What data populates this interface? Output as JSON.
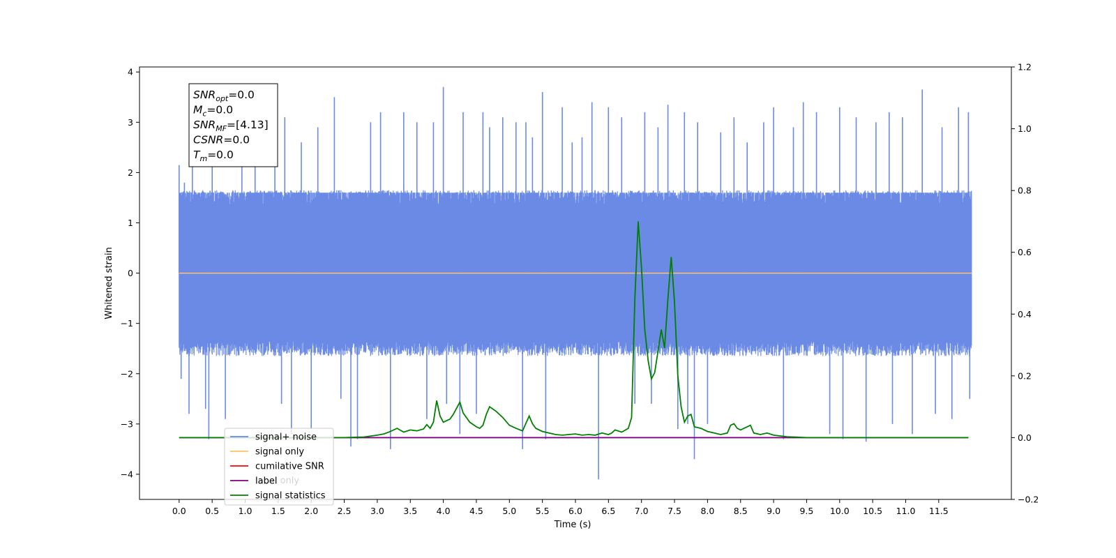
{
  "chart_data": {
    "type": "line",
    "xlabel": "Time (s)",
    "ylabel": "Whitened strain",
    "xlim": [
      -0.6,
      12.6
    ],
    "ylim": [
      -4.5,
      4.1
    ],
    "ylim_right": [
      -0.2,
      1.2
    ],
    "x_ticks": [
      0.0,
      0.5,
      1.0,
      1.5,
      2.0,
      2.5,
      3.0,
      3.5,
      4.0,
      4.5,
      5.0,
      5.5,
      6.0,
      6.5,
      7.0,
      7.5,
      8.0,
      8.5,
      9.0,
      9.5,
      10.0,
      10.5,
      11.0,
      11.5
    ],
    "y_ticks_left": [
      4,
      3,
      2,
      1,
      0,
      -1,
      -2,
      -3,
      -4
    ],
    "y_ticks_right": [
      1.2,
      1.0,
      0.8,
      0.6,
      0.4,
      0.2,
      0.0,
      -0.2
    ],
    "grid": false,
    "legend_position": "lower-left",
    "legend": [
      {
        "label": "signal+ noise",
        "color": "#6a8ae6"
      },
      {
        "label": "signal only",
        "color": "#ffc266"
      },
      {
        "label": "cumilative SNR",
        "color": "#ff0000"
      },
      {
        "label": "label",
        "color": "#800080"
      },
      {
        "label": "signal statistics",
        "color": "#008000"
      }
    ],
    "legend_hidden_text": "label only",
    "info_box": [
      {
        "var": "SNR",
        "sub": "opt",
        "value": "=0.0"
      },
      {
        "var": "M",
        "sub": "c",
        "value": "=0.0"
      },
      {
        "var": "SNR",
        "sub": "MF",
        "value": "=[4.13]"
      },
      {
        "var": "CSNR",
        "sub": "",
        "value": "=0.0"
      },
      {
        "var": "T",
        "sub": "m",
        "value": "=0.0"
      }
    ],
    "series": [
      {
        "name": "signal+ noise",
        "axis": "left",
        "color": "#6a8ae6",
        "x_range": [
          0.0,
          12.0
        ],
        "envelope_abs": 1.6,
        "spikes": [
          [
            0.0,
            2.15
          ],
          [
            0.03,
            -2.1
          ],
          [
            0.08,
            1.8
          ],
          [
            0.15,
            -2.8
          ],
          [
            0.2,
            2.4
          ],
          [
            0.4,
            -2.7
          ],
          [
            0.45,
            -3.3
          ],
          [
            0.5,
            3.1
          ],
          [
            0.7,
            -2.9
          ],
          [
            0.95,
            2.6
          ],
          [
            1.15,
            3.1
          ],
          [
            1.45,
            3.2
          ],
          [
            1.55,
            -2.6
          ],
          [
            1.6,
            3.1
          ],
          [
            1.7,
            -3.2
          ],
          [
            1.85,
            2.6
          ],
          [
            2.0,
            -3.1
          ],
          [
            2.1,
            2.9
          ],
          [
            2.35,
            3.5
          ],
          [
            2.45,
            -2.5
          ],
          [
            2.6,
            -3.45
          ],
          [
            2.7,
            -3.3
          ],
          [
            2.9,
            3.0
          ],
          [
            3.05,
            3.2
          ],
          [
            3.2,
            -3.5
          ],
          [
            3.4,
            3.2
          ],
          [
            3.6,
            3.0
          ],
          [
            3.75,
            -2.9
          ],
          [
            3.85,
            3.0
          ],
          [
            4.0,
            3.7
          ],
          [
            4.05,
            -2.6
          ],
          [
            4.25,
            -3.2
          ],
          [
            4.3,
            3.2
          ],
          [
            4.5,
            -2.8
          ],
          [
            4.6,
            3.2
          ],
          [
            4.7,
            2.9
          ],
          [
            4.9,
            3.1
          ],
          [
            5.1,
            3.0
          ],
          [
            5.2,
            -3.5
          ],
          [
            5.25,
            3.0
          ],
          [
            5.35,
            2.7
          ],
          [
            5.5,
            3.6
          ],
          [
            5.55,
            -3.3
          ],
          [
            5.8,
            3.3
          ],
          [
            5.95,
            2.6
          ],
          [
            6.1,
            2.7
          ],
          [
            6.25,
            3.4
          ],
          [
            6.35,
            -4.1
          ],
          [
            6.5,
            3.3
          ],
          [
            6.7,
            3.1
          ],
          [
            6.9,
            -2.6
          ],
          [
            7.05,
            3.2
          ],
          [
            7.15,
            -2.6
          ],
          [
            7.25,
            2.9
          ],
          [
            7.4,
            3.35
          ],
          [
            7.55,
            -3.1
          ],
          [
            7.65,
            3.2
          ],
          [
            7.7,
            -3.0
          ],
          [
            7.8,
            -3.7
          ],
          [
            7.85,
            3.0
          ],
          [
            8.0,
            -3.0
          ],
          [
            8.2,
            2.8
          ],
          [
            8.4,
            3.1
          ],
          [
            8.6,
            2.6
          ],
          [
            8.85,
            3.0
          ],
          [
            9.0,
            3.3
          ],
          [
            9.15,
            -3.3
          ],
          [
            9.3,
            2.9
          ],
          [
            9.45,
            3.4
          ],
          [
            9.65,
            3.2
          ],
          [
            9.85,
            -3.2
          ],
          [
            10.0,
            3.3
          ],
          [
            10.05,
            -3.3
          ],
          [
            10.25,
            3.1
          ],
          [
            10.4,
            -3.35
          ],
          [
            10.55,
            3.0
          ],
          [
            10.75,
            3.2
          ],
          [
            10.8,
            -3.0
          ],
          [
            10.95,
            3.1
          ],
          [
            11.1,
            -3.2
          ],
          [
            11.25,
            3.65
          ],
          [
            11.45,
            -2.8
          ],
          [
            11.55,
            2.9
          ],
          [
            11.7,
            -2.9
          ],
          [
            11.8,
            3.3
          ],
          [
            11.95,
            3.2
          ],
          [
            11.97,
            -2.5
          ]
        ]
      },
      {
        "name": "signal only",
        "axis": "left",
        "color": "#ffc266",
        "x": [
          0.0,
          12.0
        ],
        "y": [
          0.0,
          0.0
        ]
      },
      {
        "name": "label",
        "axis": "right",
        "color": "#800080",
        "x": [
          0.0,
          11.95
        ],
        "y": [
          0.0,
          0.0
        ]
      },
      {
        "name": "signal statistics",
        "axis": "right",
        "color": "#008000",
        "x": [
          0.0,
          2.5,
          2.8,
          3.0,
          3.1,
          3.2,
          3.3,
          3.4,
          3.5,
          3.6,
          3.7,
          3.75,
          3.8,
          3.85,
          3.9,
          3.95,
          4.0,
          4.05,
          4.1,
          4.15,
          4.2,
          4.25,
          4.3,
          4.4,
          4.5,
          4.55,
          4.6,
          4.65,
          4.7,
          4.8,
          4.9,
          5.0,
          5.1,
          5.2,
          5.3,
          5.35,
          5.4,
          5.5,
          5.6,
          5.7,
          5.8,
          5.9,
          6.0,
          6.1,
          6.2,
          6.3,
          6.4,
          6.5,
          6.55,
          6.6,
          6.7,
          6.8,
          6.85,
          6.9,
          6.95,
          7.0,
          7.05,
          7.1,
          7.15,
          7.2,
          7.25,
          7.3,
          7.35,
          7.4,
          7.45,
          7.5,
          7.55,
          7.6,
          7.65,
          7.7,
          7.75,
          7.8,
          7.9,
          8.0,
          8.1,
          8.2,
          8.3,
          8.35,
          8.4,
          8.45,
          8.5,
          8.6,
          8.65,
          8.7,
          8.8,
          8.9,
          9.0,
          9.2,
          9.5,
          11.95
        ],
        "y": [
          0.0,
          0.0,
          0.002,
          0.008,
          0.012,
          0.02,
          0.03,
          0.018,
          0.025,
          0.022,
          0.028,
          0.042,
          0.03,
          0.05,
          0.12,
          0.07,
          0.05,
          0.055,
          0.06,
          0.075,
          0.095,
          0.115,
          0.08,
          0.05,
          0.035,
          0.03,
          0.04,
          0.075,
          0.1,
          0.085,
          0.065,
          0.04,
          0.03,
          0.022,
          0.07,
          0.045,
          0.03,
          0.02,
          0.015,
          0.01,
          0.008,
          0.01,
          0.012,
          0.008,
          0.01,
          0.008,
          0.015,
          0.01,
          0.015,
          0.025,
          0.018,
          0.03,
          0.065,
          0.45,
          0.7,
          0.55,
          0.35,
          0.25,
          0.19,
          0.21,
          0.28,
          0.35,
          0.29,
          0.45,
          0.585,
          0.44,
          0.2,
          0.1,
          0.05,
          0.07,
          0.075,
          0.035,
          0.03,
          0.02,
          0.015,
          0.01,
          0.015,
          0.04,
          0.045,
          0.03,
          0.025,
          0.035,
          0.04,
          0.015,
          0.01,
          0.015,
          0.008,
          0.003,
          0.0,
          0.0
        ]
      }
    ]
  }
}
